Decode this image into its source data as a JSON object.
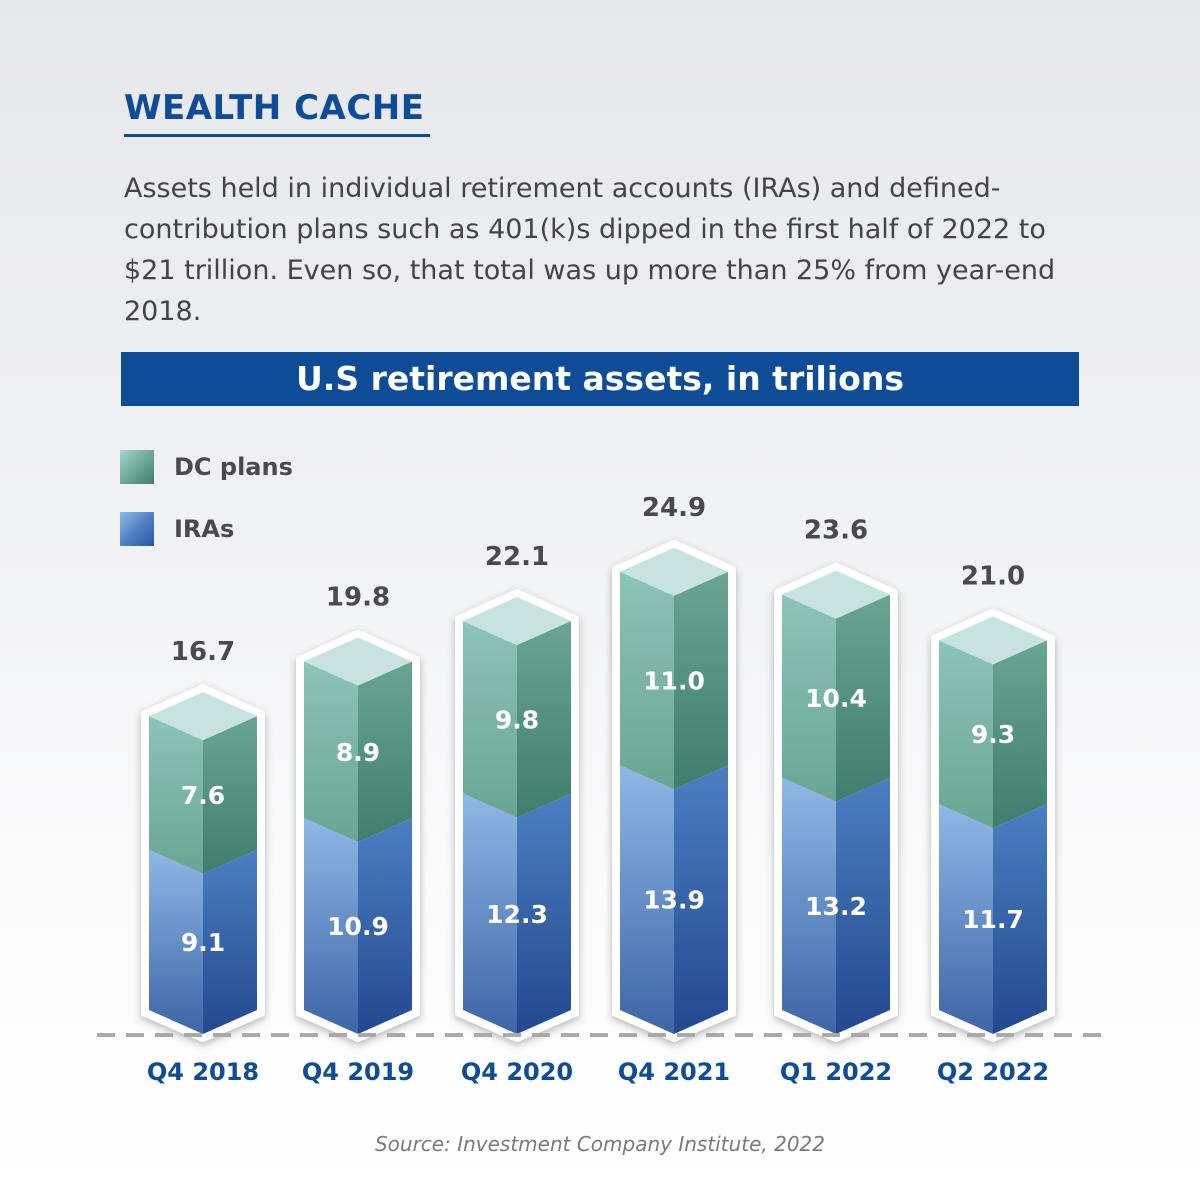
{
  "header": {
    "title": "WEALTH CACHE",
    "description": "Assets held in individual retirement accounts (IRAs) and defined-contribution plans such as 401(k)s dipped in the first half of 2022 to $21 trillion. Even so, that total was up more than 25% from year-end 2018."
  },
  "source": "Source: Investment Company Institute, 2022",
  "colors": {
    "banner": "#0f4c97",
    "title": "#0f4c97",
    "dc_light": "#c6e3e0",
    "dc_mid": "#6aa594",
    "dc_dark": "#3f7d6e",
    "ira_light": "#8fb8e6",
    "ira_mid": "#4a7fc2",
    "ira_dark": "#24488f"
  },
  "chart_data": {
    "type": "bar",
    "stacked": true,
    "title": "U.S retirement assets, in trilions",
    "categories": [
      "Q4 2018",
      "Q4 2019",
      "Q4 2020",
      "Q4 2021",
      "Q1 2022",
      "Q2 2022"
    ],
    "series": [
      {
        "name": "IRAs",
        "values": [
          9.1,
          10.9,
          12.3,
          13.9,
          13.2,
          11.7
        ]
      },
      {
        "name": "DC plans",
        "values": [
          7.6,
          8.9,
          9.8,
          11.0,
          10.4,
          9.3
        ]
      }
    ],
    "totals": [
      16.7,
      19.8,
      22.1,
      24.9,
      23.6,
      21.0
    ],
    "legend": [
      "DC plans",
      "IRAs"
    ],
    "legend_position": "top-left",
    "xlabel": "",
    "ylabel": "",
    "ylim": [
      0,
      25
    ],
    "grid": false
  }
}
